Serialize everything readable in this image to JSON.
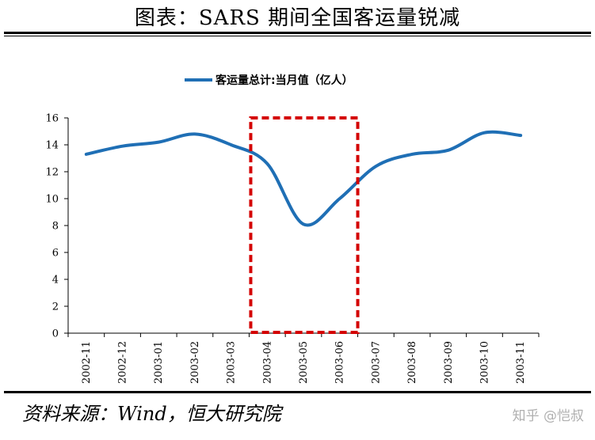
{
  "header": {
    "title": "图表：SARS 期间全国客运量锐减"
  },
  "footer": {
    "source": "资料来源：Wind，恒大研究院",
    "watermark": "知乎 @恺叔"
  },
  "chart_data": {
    "type": "line",
    "title": "",
    "xlabel": "",
    "ylabel": "",
    "categories": [
      "2002-11",
      "2002-12",
      "2003-01",
      "2003-02",
      "2003-03",
      "2003-04",
      "2003-05",
      "2003-06",
      "2003-07",
      "2003-08",
      "2003-09",
      "2003-10",
      "2003-11"
    ],
    "series": [
      {
        "name": "客运量总计:当月值（亿人）",
        "values": [
          13.3,
          13.9,
          14.2,
          14.8,
          14.0,
          12.6,
          8.1,
          10.0,
          12.4,
          13.3,
          13.6,
          14.9,
          14.7
        ]
      }
    ],
    "ylim": [
      0,
      16
    ],
    "yticks": [
      "0",
      "2",
      "4",
      "6",
      "8",
      "10",
      "12",
      "14",
      "16"
    ],
    "grid": false,
    "legend": "top",
    "highlight": {
      "from": "2003-04",
      "to": "2003-06",
      "style": "red dashed box"
    },
    "colors": {
      "line": "#1f6fb5",
      "highlight": "#d40000"
    }
  }
}
